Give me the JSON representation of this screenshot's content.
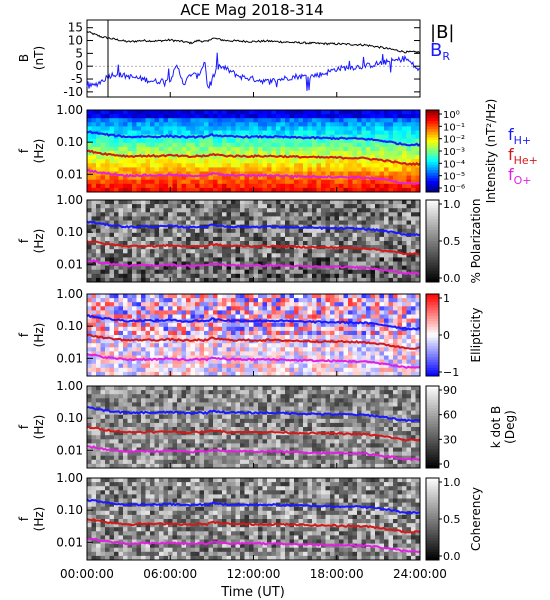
{
  "chart_data": {
    "type": "multi-panel time series and spectrograms",
    "title": "ACE Mag 2018-314",
    "x_axis": {
      "label": "Time (UT)",
      "range_hours": [
        0,
        24
      ],
      "ticks": [
        "00:00:00",
        "06:00:00",
        "12:00:00",
        "18:00:00",
        "24:00:00"
      ]
    },
    "panels": [
      {
        "id": "field",
        "type": "line",
        "ylabel": [
          "B",
          "(nT)"
        ],
        "ylim": [
          -12,
          18
        ],
        "yticks": [
          "15",
          "10",
          "5",
          "0",
          "-5",
          "-10"
        ],
        "legend": [
          {
            "text": "|B|",
            "color": "#000000"
          },
          {
            "text": "B",
            "sub": "R",
            "color": "#1a1aff"
          }
        ],
        "series": [
          {
            "name": "|B|",
            "color": "#000000",
            "x": [
              0,
              0.5,
              1,
              2,
              3,
              4,
              5,
              6,
              7,
              7.5,
              8,
              8.7,
              9,
              10,
              11,
              12,
              13,
              14,
              15,
              16,
              17,
              18,
              19,
              20,
              21,
              22,
              22.5,
              23,
              24
            ],
            "y": [
              13.5,
              12.5,
              11.5,
              10.5,
              9.5,
              10,
              9.8,
              10.2,
              9.5,
              9,
              10,
              9.5,
              11,
              10,
              9.8,
              9.6,
              9.8,
              9.5,
              9.2,
              9,
              8.8,
              8.7,
              8.5,
              8.3,
              7.5,
              6.5,
              6,
              5.5,
              5.5
            ]
          },
          {
            "name": "BR",
            "color": "#1a1aff",
            "x": [
              0,
              0.5,
              1,
              1.5,
              2,
              3,
              4,
              5,
              6,
              6.5,
              7,
              7.5,
              8,
              8.5,
              8.7,
              9,
              9.5,
              10,
              11,
              12,
              13,
              14,
              15,
              16,
              17,
              18,
              19,
              20,
              21,
              22,
              23,
              24
            ],
            "y": [
              -8,
              -7.5,
              -6,
              -4,
              -3,
              -4,
              -5,
              -6,
              -5,
              0,
              -7,
              -3,
              -4,
              2,
              -9,
              -5,
              0,
              -1,
              -4,
              -5,
              -6,
              -5,
              -4,
              -4,
              -3,
              -1,
              -0.5,
              0,
              1,
              2,
              3,
              -2
            ]
          }
        ]
      },
      {
        "id": "intensity",
        "type": "heatmap",
        "ylabel": [
          "f",
          "(Hz)"
        ],
        "yticks": [
          "1.00",
          "0.10",
          "0.01"
        ],
        "colorbar": {
          "label": "Intensity (nT²/Hz)",
          "ticks": [
            "10⁰",
            "10⁻¹",
            "10⁻²",
            "10⁻³",
            "10⁻⁴",
            "10⁻⁵",
            "10⁻⁶"
          ]
        },
        "legend": [
          {
            "text": "f",
            "sub": "H+",
            "color": "#1a1aff"
          },
          {
            "text": "f",
            "sub": "He+",
            "color": "#d11a1a"
          },
          {
            "text": "f",
            "sub": "O+",
            "color": "#e022e0"
          }
        ]
      },
      {
        "id": "polarization",
        "type": "heatmap",
        "ylabel": [
          "f",
          "(Hz)"
        ],
        "yticks": [
          "1.00",
          "0.10",
          "0.01"
        ],
        "colorbar": {
          "label": "% Polarization",
          "ticks": [
            "1.0",
            "0.5",
            "0.0"
          ]
        }
      },
      {
        "id": "ellipticity",
        "type": "heatmap",
        "ylabel": [
          "f",
          "(Hz)"
        ],
        "yticks": [
          "1.00",
          "0.10",
          "0.01"
        ],
        "colorbar": {
          "label": "Ellipticity",
          "ticks": [
            "1",
            "0",
            "−1"
          ]
        }
      },
      {
        "id": "kdotb",
        "type": "heatmap",
        "ylabel": [
          "f",
          "(Hz)"
        ],
        "yticks": [
          "1.00",
          "0.10",
          "0.01"
        ],
        "colorbar": {
          "label": [
            "k dot B",
            "(Deg)"
          ],
          "ticks": [
            "90",
            "60",
            "30",
            "0"
          ]
        }
      },
      {
        "id": "coherency",
        "type": "heatmap",
        "ylabel": [
          "f",
          "(Hz)"
        ],
        "yticks": [
          "1.00",
          "0.10",
          "0.01"
        ],
        "colorbar": {
          "label": "Coherency",
          "ticks": [
            "1.0",
            "0.5",
            "0.0"
          ]
        }
      }
    ],
    "cyclotron_lines": {
      "x": [
        0,
        0.5,
        1,
        2,
        3,
        4,
        5,
        6,
        7,
        7.5,
        8,
        8.7,
        9,
        10,
        11,
        12,
        13,
        14,
        15,
        16,
        17,
        18,
        19,
        20,
        21,
        22,
        22.5,
        23,
        24
      ],
      "f_H_hz": [
        0.21,
        0.2,
        0.18,
        0.16,
        0.145,
        0.15,
        0.148,
        0.155,
        0.145,
        0.14,
        0.15,
        0.145,
        0.17,
        0.15,
        0.148,
        0.146,
        0.148,
        0.145,
        0.14,
        0.137,
        0.134,
        0.132,
        0.13,
        0.126,
        0.114,
        0.099,
        0.09,
        0.084,
        0.084
      ],
      "colors": {
        "f_H": "#1a1aff",
        "f_He": "#d11a1a",
        "f_O": "#e022e0"
      }
    }
  }
}
